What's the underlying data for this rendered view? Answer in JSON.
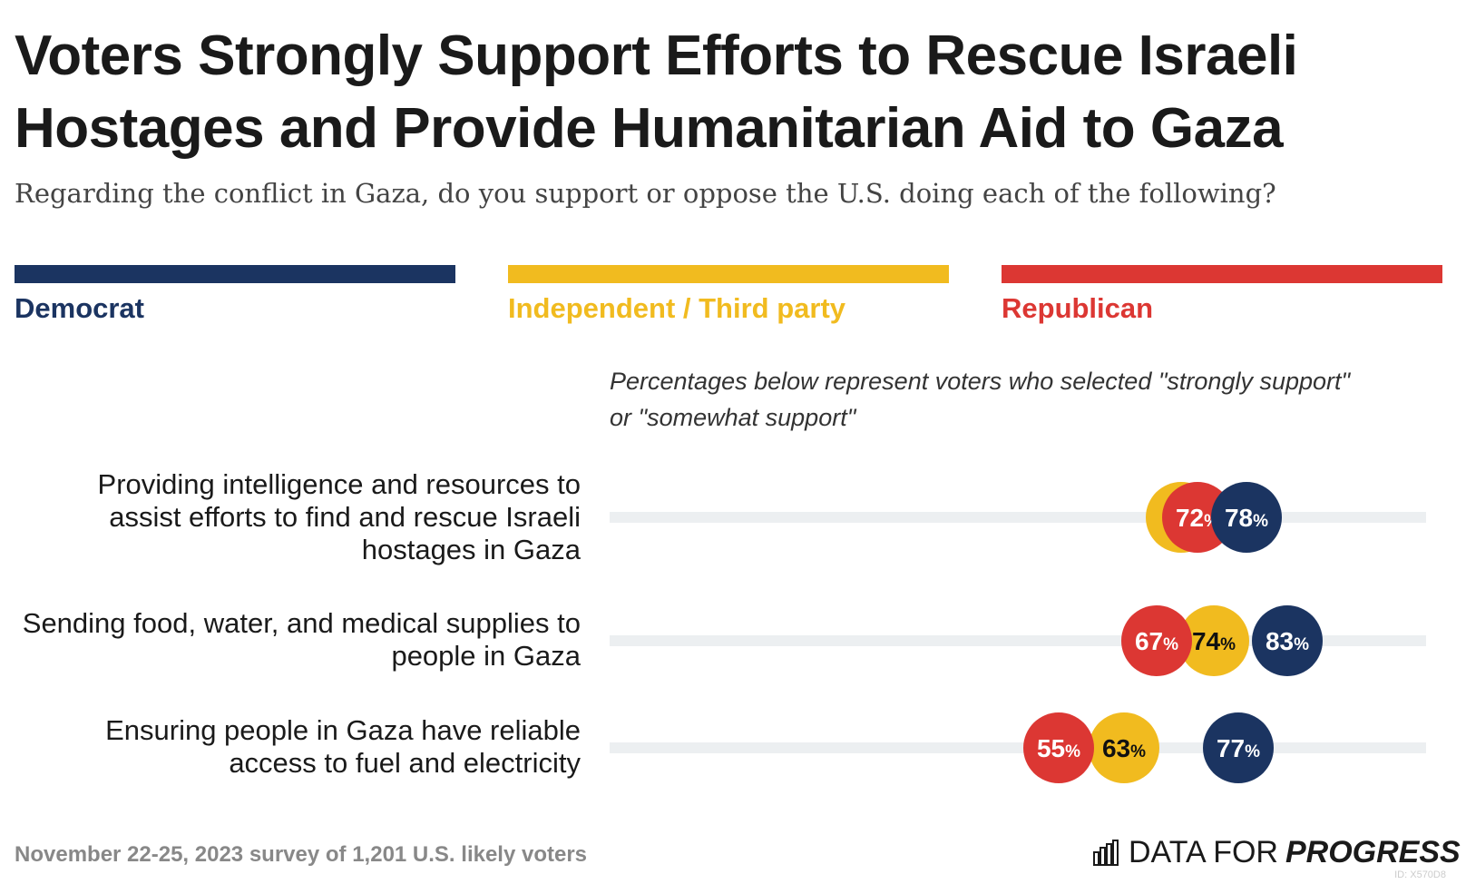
{
  "chart_data": {
    "type": "dot",
    "title": "Voters Strongly Support Efforts to Rescue Israeli\nHostages and Provide Humanitarian Aid to Gaza",
    "subtitle": "Regarding the conflict in Gaza, do you support or oppose the U.S. doing each of the following?",
    "note": "Percentages below represent voters who selected \"strongly support\" or \"somewhat support\"",
    "legend": [
      {
        "name": "Democrat",
        "color": "#1b3461"
      },
      {
        "name": "Independent / Third party",
        "color": "#f1bb1f"
      },
      {
        "name": "Republican",
        "color": "#dc3733"
      }
    ],
    "categories": [
      "Providing intelligence and resources to assist efforts to find and rescue Israeli hostages in Gaza",
      "Sending food, water, and medical supplies to people in Gaza",
      "Ensuring people in Gaza have reliable access to fuel and electricity"
    ],
    "series": [
      {
        "name": "Independent / Third party",
        "color": "#f1bb1f",
        "label_color": "#111111",
        "values": [
          70,
          74,
          63
        ],
        "labels": [
          "",
          "74",
          "63"
        ]
      },
      {
        "name": "Republican",
        "color": "#dc3733",
        "label_color": "#ffffff",
        "values": [
          72,
          67,
          55
        ],
        "labels": [
          "72",
          "67",
          "55"
        ]
      },
      {
        "name": "Democrat",
        "color": "#1b3461",
        "label_color": "#ffffff",
        "values": [
          78,
          83,
          77
        ],
        "labels": [
          "78",
          "83",
          "77"
        ]
      }
    ],
    "percent_sign": "%",
    "xlim": [
      0,
      100
    ]
  },
  "footer": {
    "source": "November 22-25, 2023 survey of 1,201 U.S. likely voters",
    "brand_prefix": "DATA FOR",
    "brand_strong": "PROGRESS",
    "chart_id": "ID: X570D8"
  }
}
